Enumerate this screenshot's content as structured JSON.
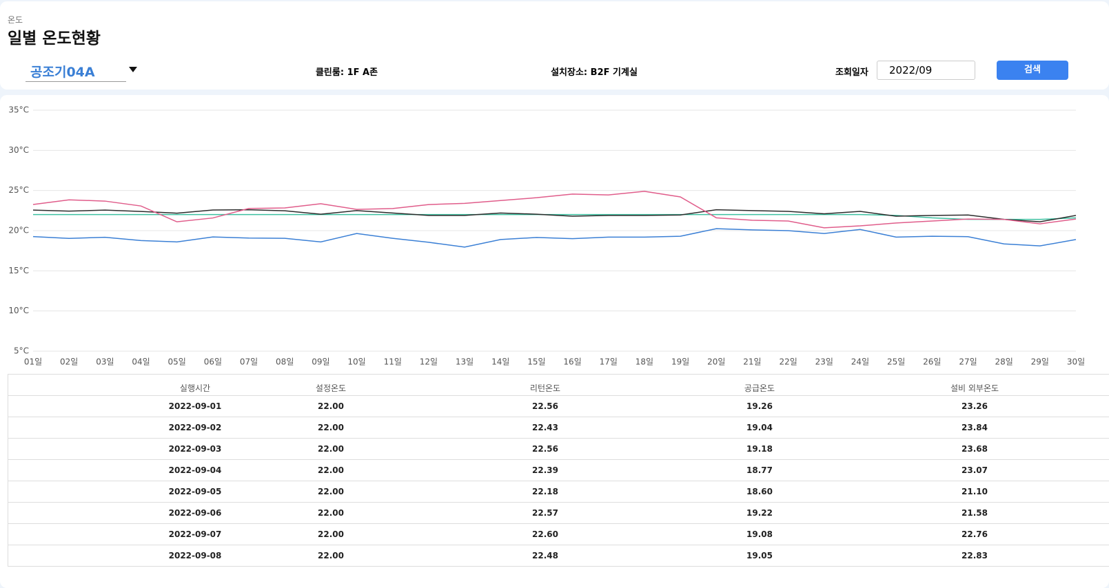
{
  "header": {
    "breadcrumb": "온도",
    "title": "일별 온도현황"
  },
  "controls": {
    "unit_select": "공조기04A",
    "cleanroom": "클린룸: 1F A존",
    "location": "설치장소: B2F 기계실",
    "date_label": "조회일자",
    "date_value": "2022/09",
    "search_button": "검색"
  },
  "chart_data": {
    "type": "line",
    "categories": [
      "01일",
      "02일",
      "03일",
      "04일",
      "05일",
      "06일",
      "07일",
      "08일",
      "09일",
      "10일",
      "11일",
      "12일",
      "13일",
      "14일",
      "15일",
      "16일",
      "17일",
      "18일",
      "19일",
      "20일",
      "21일",
      "22일",
      "23일",
      "24일",
      "25일",
      "26일",
      "27일",
      "28일",
      "29일",
      "30일"
    ],
    "ylim": [
      5,
      35
    ],
    "yticks": [
      {
        "value": 5,
        "label": "5°C"
      },
      {
        "value": 10,
        "label": "10°C"
      },
      {
        "value": 15,
        "label": "15°C"
      },
      {
        "value": 20,
        "label": "20°C"
      },
      {
        "value": 25,
        "label": "25°C"
      },
      {
        "value": 30,
        "label": "30°C"
      },
      {
        "value": 35,
        "label": "35°C"
      }
    ],
    "grid": true,
    "series": [
      {
        "name": "설정온도",
        "color": "#3cc0a0",
        "values": [
          22,
          22,
          22,
          22,
          22,
          22,
          22,
          22,
          22,
          22,
          22,
          22,
          22,
          22,
          22,
          22,
          22,
          22,
          22,
          22,
          22,
          22,
          22,
          22,
          21.9,
          21.6,
          21.4,
          21.4,
          21.4,
          21.6
        ]
      },
      {
        "name": "리턴온도",
        "color": "#2b2b2b",
        "values": [
          22.56,
          22.43,
          22.56,
          22.39,
          22.18,
          22.57,
          22.6,
          22.48,
          22.05,
          22.5,
          22.2,
          21.9,
          21.9,
          22.2,
          22.05,
          21.8,
          21.9,
          21.9,
          21.95,
          22.6,
          22.5,
          22.4,
          22.1,
          22.4,
          21.8,
          21.9,
          21.95,
          21.4,
          21.1,
          21.9
        ]
      },
      {
        "name": "공급온도",
        "color": "#3a7fd5",
        "values": [
          19.26,
          19.04,
          19.18,
          18.77,
          18.6,
          19.22,
          19.08,
          19.05,
          18.6,
          19.65,
          19.05,
          18.55,
          17.95,
          18.9,
          19.15,
          19.0,
          19.2,
          19.2,
          19.3,
          20.25,
          20.1,
          20.0,
          19.65,
          20.15,
          19.2,
          19.3,
          19.25,
          18.35,
          18.1,
          18.9
        ]
      },
      {
        "name": "설비 외부온도",
        "color": "#e05c8a",
        "values": [
          23.26,
          23.84,
          23.68,
          23.07,
          21.1,
          21.58,
          22.76,
          22.83,
          23.35,
          22.65,
          22.75,
          23.25,
          23.4,
          23.75,
          24.1,
          24.55,
          24.45,
          24.9,
          24.2,
          21.6,
          21.3,
          21.2,
          20.35,
          20.6,
          20.95,
          21.2,
          21.45,
          21.4,
          20.85,
          21.45
        ]
      }
    ]
  },
  "table": {
    "header_first": "실행시간",
    "rows": [
      [
        "2022-09-01",
        "22.00",
        "22.56",
        "19.26",
        "23.26"
      ],
      [
        "2022-09-02",
        "22.00",
        "22.43",
        "19.04",
        "23.84"
      ],
      [
        "2022-09-03",
        "22.00",
        "22.56",
        "19.18",
        "23.68"
      ],
      [
        "2022-09-04",
        "22.00",
        "22.39",
        "18.77",
        "23.07"
      ],
      [
        "2022-09-05",
        "22.00",
        "22.18",
        "18.60",
        "21.10"
      ],
      [
        "2022-09-06",
        "22.00",
        "22.57",
        "19.22",
        "21.58"
      ],
      [
        "2022-09-07",
        "22.00",
        "22.60",
        "19.08",
        "22.76"
      ],
      [
        "2022-09-08",
        "22.00",
        "22.48",
        "19.05",
        "22.83"
      ]
    ]
  }
}
